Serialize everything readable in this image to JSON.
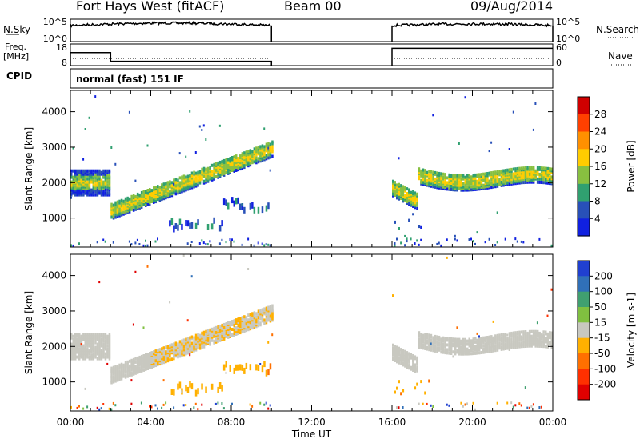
{
  "header": {
    "title": "Fort Hays West (fitACF)",
    "beam": "Beam 00",
    "date": "09/Aug/2014"
  },
  "left_labels": {
    "nsky": "N.Sky",
    "freq": "Freq.",
    "mhz": "[MHz]",
    "cpid": "CPID"
  },
  "right_labels": {
    "nsearch": "N.Search",
    "nave": "Nave"
  },
  "cpid_text": "normal (fast) 151 IF",
  "chart_data": [
    {
      "type": "line",
      "name": "noise",
      "y_left_ticks": [
        "10^5",
        "10^0"
      ],
      "y_right_ticks": [
        "10^5",
        "10^0"
      ],
      "series": [
        {
          "name": "N.Sky",
          "segments": [
            [
              0,
              10
            ],
            [
              16,
              24
            ]
          ],
          "y_fraction": 0.72
        },
        {
          "name": "N.Search",
          "style": "dotted"
        }
      ]
    },
    {
      "type": "line",
      "name": "frequency",
      "y_left_ticks": [
        "18",
        "8"
      ],
      "y_right_ticks": [
        "60",
        "0"
      ],
      "series": [
        {
          "name": "Freq.",
          "points": [
            [
              0,
              14
            ],
            [
              2,
              14
            ],
            [
              2,
              10
            ],
            [
              10,
              10
            ],
            [
              16,
              16
            ],
            [
              24,
              16
            ]
          ]
        },
        {
          "name": "Nave",
          "style": "dotted",
          "segments": [
            [
              0,
              10
            ],
            [
              16,
              24
            ]
          ]
        }
      ]
    },
    {
      "type": "heatmap",
      "name": "power",
      "ylabel": "Slant Range [km]",
      "yticks": [
        "4000",
        "3000",
        "2000",
        "1000"
      ],
      "colorbar": {
        "label": "Power [dB]",
        "ticks": [
          "28",
          "24",
          "20",
          "16",
          "12",
          "8",
          "4"
        ],
        "colors": [
          "#d00000",
          "#ff4000",
          "#ff9000",
          "#ffcc00",
          "#88c040",
          "#30a070",
          "#2850b8",
          "#1020e0"
        ]
      }
    },
    {
      "type": "heatmap",
      "name": "velocity",
      "ylabel": "Slant Range [km]",
      "yticks": [
        "4000",
        "3000",
        "2000",
        "1000"
      ],
      "xlabel": "Time UT",
      "xticks": [
        "00:00",
        "04:00",
        "08:00",
        "12:00",
        "16:00",
        "20:00",
        "00:00"
      ],
      "colorbar": {
        "label": "Velocity [m s-1]",
        "ticks": [
          "200",
          "100",
          "50",
          "15",
          "-15",
          "-50",
          "-100",
          "-200"
        ],
        "colors": [
          "#2040d0",
          "#3070b8",
          "#40a070",
          "#80c040",
          "#c8c8c0",
          "#ffb000",
          "#ff7000",
          "#ff3000",
          "#e00000"
        ]
      },
      "data_segments": [
        [
          0,
          10
        ],
        [
          16,
          24
        ]
      ]
    }
  ]
}
